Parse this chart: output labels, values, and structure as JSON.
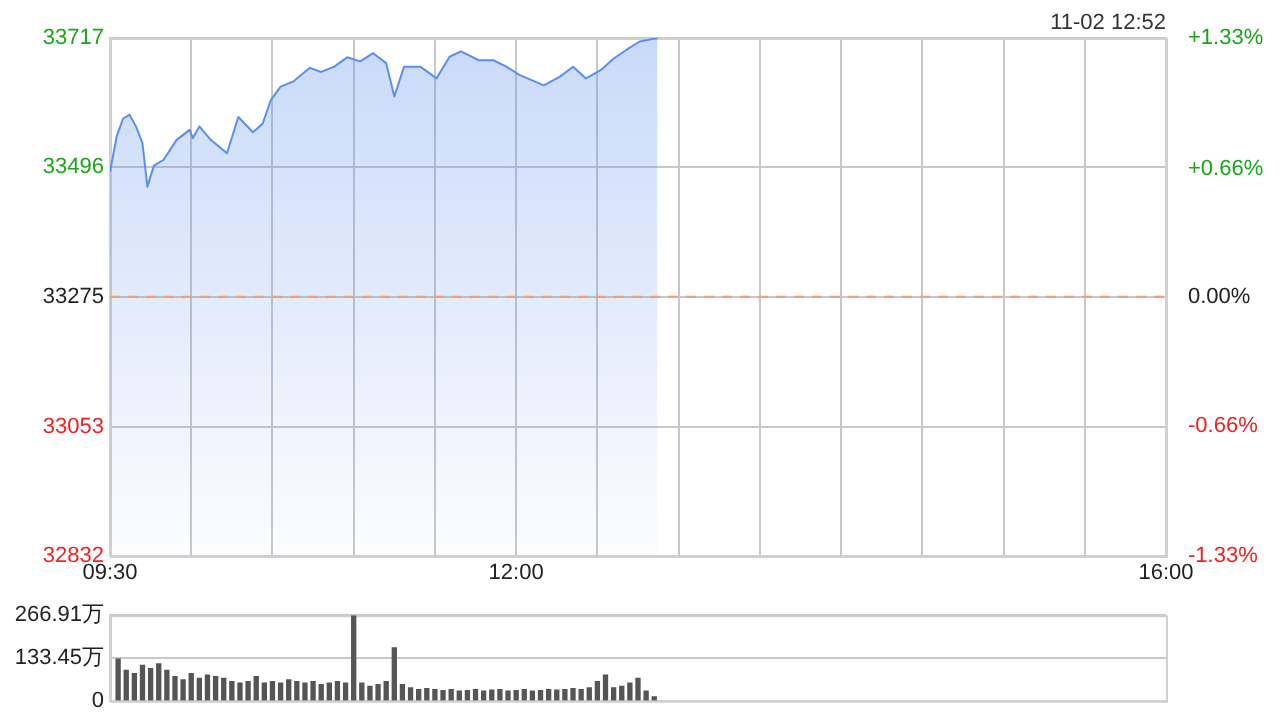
{
  "chart_data": [
    {
      "type": "area",
      "annotations": [
        "11-02 12:52"
      ],
      "legend": false,
      "grid": true,
      "x": [
        9.5,
        9.541,
        9.58,
        9.62,
        9.66,
        9.7,
        9.73,
        9.77,
        9.83,
        9.91,
        9.99,
        10.01,
        10.05,
        10.12,
        10.22,
        10.29,
        10.38,
        10.44,
        10.49,
        10.55,
        10.63,
        10.73,
        10.8,
        10.88,
        10.96,
        11.04,
        11.12,
        11.2,
        11.25,
        11.31,
        11.41,
        11.51,
        11.59,
        11.66,
        11.77,
        11.86,
        11.94,
        12.02,
        12.17,
        12.27,
        12.35,
        12.43,
        12.52,
        12.6,
        12.68,
        12.76,
        12.87
      ],
      "series": [
        {
          "color": "#5b8fee",
          "values": [
            33488,
            33549,
            33579,
            33586,
            33566,
            33537,
            33463,
            33499,
            33509,
            33543,
            33560,
            33546,
            33566,
            33543,
            33520,
            33582,
            33556,
            33571,
            33611,
            33634,
            33643,
            33666,
            33659,
            33668,
            33684,
            33677,
            33691,
            33674,
            33617,
            33668,
            33668,
            33648,
            33685,
            33694,
            33679,
            33679,
            33668,
            33654,
            33636,
            33651,
            33668,
            33648,
            33662,
            33682,
            33697,
            33711,
            33717
          ]
        }
      ],
      "xlim": [
        9.5,
        16
      ],
      "xticks": [
        {
          "value": 9.5,
          "label": "09:30"
        },
        {
          "value": 10,
          "label": null
        },
        {
          "value": 10.5,
          "label": null
        },
        {
          "value": 11,
          "label": null
        },
        {
          "value": 11.5,
          "label": null
        },
        {
          "value": 12,
          "label": "12:00"
        },
        {
          "value": 12.5,
          "label": null
        },
        {
          "value": 13,
          "label": null
        },
        {
          "value": 13.5,
          "label": null
        },
        {
          "value": 14,
          "label": null
        },
        {
          "value": 14.5,
          "label": null
        },
        {
          "value": 15,
          "label": null
        },
        {
          "value": 15.5,
          "label": null
        },
        {
          "value": 16,
          "label": "16:00"
        }
      ],
      "ylim": [
        32832,
        33717
      ],
      "yticks": [
        32832,
        33053,
        33275,
        33496,
        33717
      ],
      "y2lim": [
        -1.33,
        1.33
      ],
      "y2ticks": [
        {
          "value": -1.33,
          "label": "-1.33%"
        },
        {
          "value": -0.66,
          "label": "-0.66%"
        },
        {
          "value": 0,
          "label": "0.00%"
        },
        {
          "value": 0.66,
          "label": "+0.66%"
        },
        {
          "value": 1.33,
          "label": "+1.33%"
        }
      ],
      "ref_lines": [
        {
          "axis": "y",
          "value": 33275,
          "color": "#f0a070",
          "line_style": "dashed"
        }
      ]
    },
    {
      "type": "bar",
      "legend": false,
      "grid": "y",
      "tick_labels": "y",
      "x": [
        9.55,
        9.6,
        9.65,
        9.7,
        9.75,
        9.8,
        9.85,
        9.9,
        9.95,
        10,
        10.05,
        10.1,
        10.15,
        10.2,
        10.25,
        10.3,
        10.35,
        10.4,
        10.45,
        10.5,
        10.55,
        10.6,
        10.65,
        10.7,
        10.75,
        10.8,
        10.85,
        10.9,
        10.95,
        11,
        11.05,
        11.1,
        11.15,
        11.2,
        11.25,
        11.3,
        11.35,
        11.4,
        11.45,
        11.5,
        11.55,
        11.6,
        11.65,
        11.7,
        11.75,
        11.8,
        11.85,
        11.9,
        11.95,
        12,
        12.05,
        12.1,
        12.15,
        12.2,
        12.25,
        12.3,
        12.35,
        12.4,
        12.45,
        12.5,
        12.55,
        12.6,
        12.65,
        12.7,
        12.75,
        12.8,
        12.85
      ],
      "series": [
        {
          "color": "#555555",
          "values": [
            130,
            95,
            85,
            110,
            100,
            115,
            95,
            75,
            65,
            85,
            70,
            80,
            75,
            70,
            60,
            55,
            60,
            75,
            55,
            60,
            55,
            65,
            60,
            55,
            60,
            50,
            55,
            60,
            55,
            265,
            55,
            45,
            50,
            60,
            165,
            50,
            40,
            35,
            38,
            35,
            32,
            35,
            30,
            32,
            35,
            30,
            33,
            35,
            30,
            32,
            35,
            30,
            32,
            35,
            33,
            35,
            38,
            35,
            40,
            60,
            80,
            40,
            45,
            55,
            70,
            30,
            12
          ]
        }
      ],
      "xlim": [
        9.5,
        16
      ],
      "ylim": [
        0,
        266.91
      ],
      "yticks": [
        0,
        {
          "value": 133.45,
          "label": "133.45万"
        },
        {
          "value": 266.91,
          "label": "266.91万"
        }
      ]
    }
  ]
}
